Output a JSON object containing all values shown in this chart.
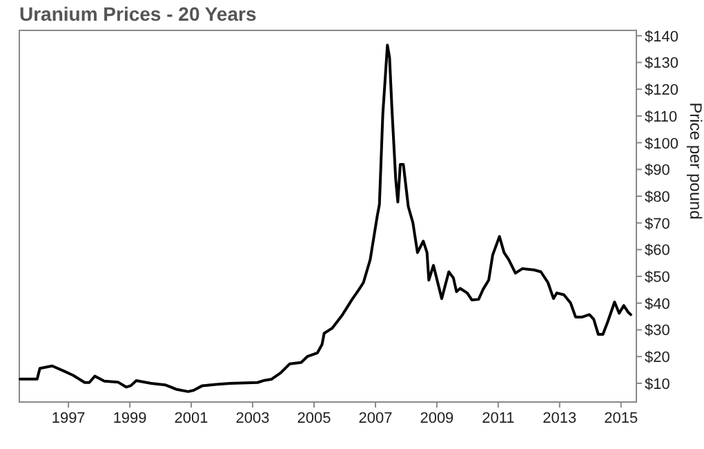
{
  "chart_data": {
    "type": "line",
    "title": "Uranium Prices - 20 Years",
    "ylabel": "Price per pound",
    "x": [
      1995.42,
      1995.98,
      1996.07,
      1996.47,
      1996.85,
      1997.15,
      1997.53,
      1997.68,
      1997.86,
      1998.17,
      1998.62,
      1998.88,
      1999.03,
      1999.21,
      1999.7,
      2000.15,
      2000.53,
      2000.9,
      2001.08,
      2001.36,
      2001.81,
      2002.26,
      2003.16,
      2003.38,
      2003.61,
      2003.91,
      2004.21,
      2004.58,
      2004.78,
      2005.11,
      2005.26,
      2005.33,
      2005.59,
      2005.93,
      2006.23,
      2006.46,
      2006.61,
      2006.83,
      2007.06,
      2007.13,
      2007.24,
      2007.39,
      2007.46,
      2007.54,
      2007.66,
      2007.73,
      2007.81,
      2007.91,
      2008.07,
      2008.22,
      2008.37,
      2008.56,
      2008.68,
      2008.74,
      2008.89,
      2009.16,
      2009.39,
      2009.54,
      2009.64,
      2009.76,
      2009.99,
      2010.14,
      2010.36,
      2010.51,
      2010.69,
      2010.82,
      2011.04,
      2011.19,
      2011.34,
      2011.56,
      2011.79,
      2012.17,
      2012.39,
      2012.62,
      2012.8,
      2012.91,
      2013.14,
      2013.36,
      2013.52,
      2013.74,
      2013.97,
      2014.11,
      2014.26,
      2014.41,
      2014.57,
      2014.79,
      2014.94,
      2015.09,
      2015.24,
      2015.32
    ],
    "series": [
      {
        "color": "#000000",
        "values": [
          11.6,
          11.6,
          15.6,
          16.5,
          14.6,
          13,
          10.3,
          10.3,
          12.7,
          10.8,
          10.4,
          8.6,
          9.1,
          11,
          10,
          9.4,
          7.7,
          6.9,
          7.4,
          9.1,
          9.6,
          10,
          10.3,
          11.1,
          11.5,
          13.9,
          17.3,
          17.8,
          20,
          21.4,
          24.5,
          28.7,
          30.6,
          35.7,
          41.2,
          45,
          47.7,
          56.3,
          72.6,
          76.9,
          110.5,
          136.5,
          131.9,
          112.2,
          86.4,
          77.8,
          91.9,
          91.9,
          76.1,
          70.1,
          58.9,
          63.2,
          58.9,
          48.6,
          54.1,
          41.7,
          51.7,
          49.4,
          44.3,
          45.5,
          43.8,
          41.2,
          41.4,
          45.2,
          48.6,
          58,
          64.9,
          58.9,
          56.3,
          51.2,
          52.9,
          52.4,
          51.7,
          47.7,
          41.7,
          43.8,
          43.1,
          40,
          34.8,
          34.8,
          35.7,
          34,
          28.3,
          28.3,
          33.1,
          40.4,
          36.2,
          39.1,
          36.5,
          35.7
        ]
      }
    ],
    "xlim": [
      1995.4,
      2015.5
    ],
    "xticks": [
      1997,
      1999,
      2001,
      2003,
      2005,
      2007,
      2009,
      2011,
      2013,
      2015
    ],
    "ylim": [
      3,
      142
    ],
    "yticks": [
      {
        "value": 10,
        "label": "$10"
      },
      {
        "value": 20,
        "label": "$20"
      },
      {
        "value": 30,
        "label": "$30"
      },
      {
        "value": 40,
        "label": "$40"
      },
      {
        "value": 50,
        "label": "$50"
      },
      {
        "value": 60,
        "label": "$60"
      },
      {
        "value": 70,
        "label": "$70"
      },
      {
        "value": 80,
        "label": "$80"
      },
      {
        "value": 90,
        "label": "$90"
      },
      {
        "value": 100,
        "label": "$100"
      },
      {
        "value": 110,
        "label": "$110"
      },
      {
        "value": 120,
        "label": "$120"
      },
      {
        "value": 130,
        "label": "$130"
      },
      {
        "value": 140,
        "label": "$140"
      }
    ],
    "grid": false,
    "marker": "none",
    "line_style": "solid"
  }
}
